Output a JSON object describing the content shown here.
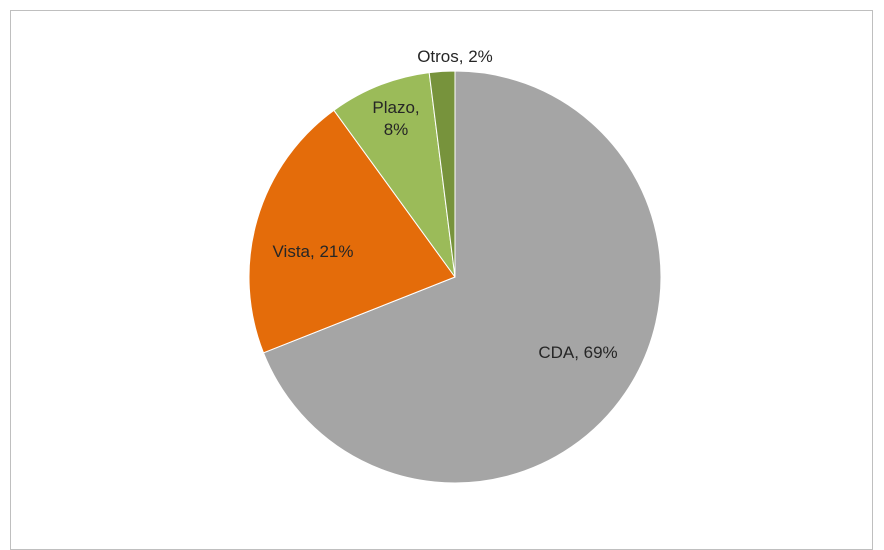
{
  "chart_data": {
    "type": "pie",
    "values": [
      69,
      21,
      8,
      2
    ],
    "value_labels": [
      "CDA, 69%",
      "Vista, 21%",
      "Plazo, 8%",
      "Otros, 2%"
    ],
    "colors": [
      "#a5a5a5",
      "#e46c0a",
      "#9bbb59",
      "#77933c"
    ]
  }
}
